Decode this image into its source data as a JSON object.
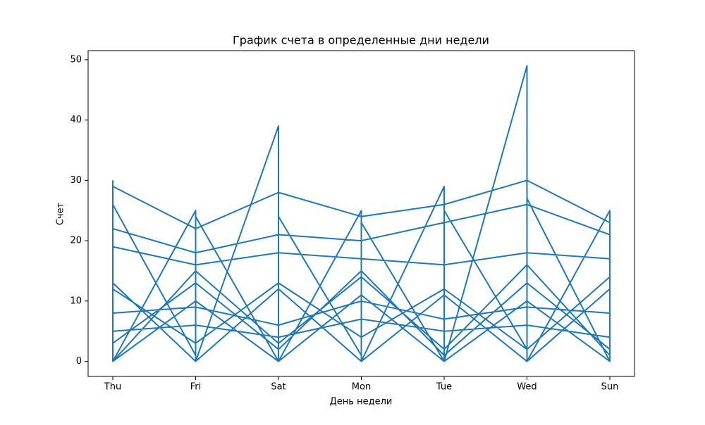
{
  "chart_data": {
    "type": "line",
    "title": "График счета в определенные дни недели",
    "xlabel": "День недели",
    "ylabel": "Счет",
    "categories": [
      "Thu",
      "Fri",
      "Sat",
      "Mon",
      "Tue",
      "Wed",
      "Sun"
    ],
    "ylim": [
      -2.5,
      51.5
    ],
    "yticks": [
      0,
      10,
      20,
      30,
      40,
      50
    ],
    "grid": false,
    "series": [
      {
        "color": "#1f77b4",
        "x": [
          "Thu",
          "Thu",
          "Fri",
          "Fri",
          "Sat",
          "Sat",
          "Mon",
          "Mon",
          "Tue",
          "Tue",
          "Wed",
          "Wed",
          "Sun",
          "Sun",
          "Sun",
          "Wed",
          "Tue",
          "Mon",
          "Sat",
          "Fri",
          "Thu",
          "Thu",
          "Fri",
          "Sat",
          "Mon",
          "Tue",
          "Wed",
          "Sun",
          "Sun",
          "Sun",
          "Wed",
          "Wed",
          "Tue",
          "Tue",
          "Mon",
          "Mon",
          "Sat",
          "Sat",
          "Fri",
          "Fri",
          "Thu",
          "Thu",
          "Thu",
          "Fri",
          "Sat",
          "Mon",
          "Tue",
          "Wed",
          "Sun",
          "Sun",
          "Wed",
          "Tue",
          "Mon",
          "Sat",
          "Fri",
          "Thu",
          "Thu",
          "Fri",
          "Sat",
          "Mon",
          "Tue",
          "Wed",
          "Sun",
          "Sun",
          "Wed",
          "Tue",
          "Mon",
          "Sat",
          "Fri",
          "Thu",
          "Thu",
          "Fri",
          "Sat",
          "Mon",
          "Tue",
          "Wed",
          "Sun",
          "Sun",
          "Wed",
          "Tue",
          "Mon",
          "Sat",
          "Fri",
          "Thu",
          "Thu",
          "Fri",
          "Sat",
          "Mon",
          "Tue",
          "Wed",
          "Sun",
          "Sun",
          "Wed",
          "Tue",
          "Mon",
          "Sat",
          "Fri",
          "Thu"
        ],
        "values": [
          30,
          0,
          25,
          0,
          39,
          0,
          25,
          0,
          29,
          0,
          49,
          0,
          25,
          0,
          23,
          30,
          26,
          24,
          28,
          22,
          29,
          0,
          15,
          3,
          14,
          2,
          16,
          1,
          19,
          0,
          27,
          2,
          25,
          0,
          23,
          1,
          24,
          0,
          24,
          1,
          26,
          0,
          12,
          3,
          13,
          4,
          12,
          2,
          14,
          2,
          13,
          1,
          15,
          2,
          13,
          3,
          22,
          18,
          21,
          20,
          23,
          26,
          21,
          8,
          9,
          7,
          10,
          6,
          9,
          8,
          0,
          10,
          0,
          11,
          0,
          10,
          0,
          17,
          18,
          16,
          17,
          18,
          16,
          19,
          5,
          6,
          4,
          7,
          5,
          6,
          4,
          12,
          0,
          11,
          0,
          12,
          0,
          13
        ]
      }
    ]
  }
}
